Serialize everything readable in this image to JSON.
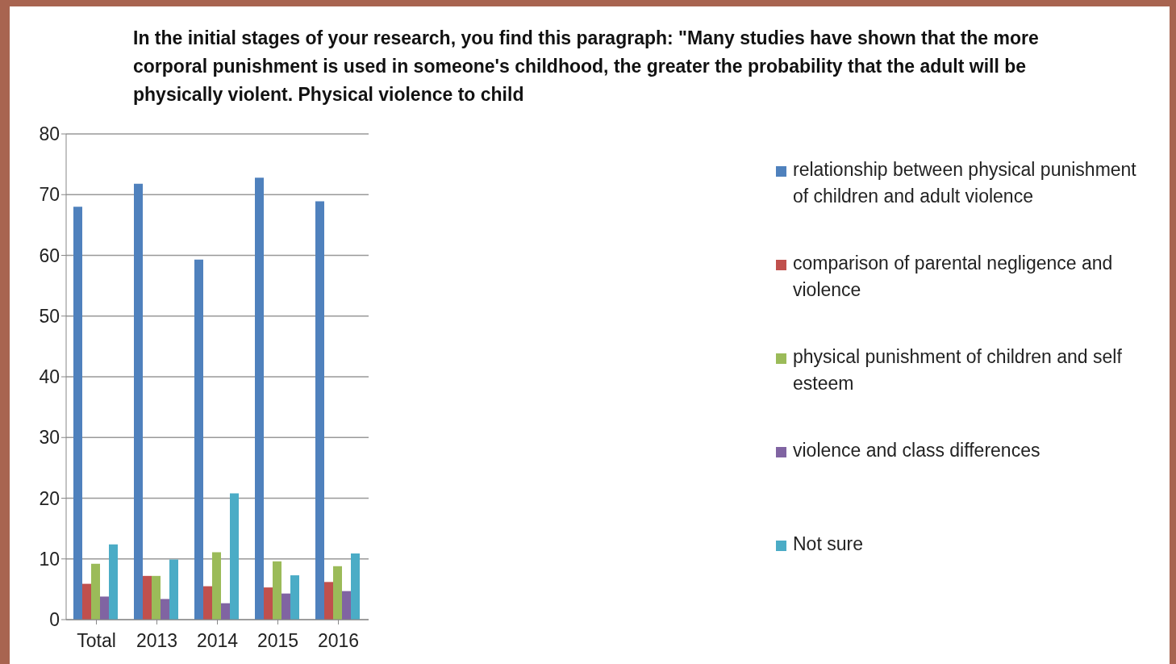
{
  "chart_data": {
    "type": "bar",
    "title": "In the initial stages of your research, you find this paragraph:  \"Many studies have shown that the more corporal punishment is used in someone's childhood, the greater the probability that the adult will  be physically violent.  Physical violence to child",
    "categories": [
      "Total",
      "2013",
      "2014",
      "2015",
      "2016"
    ],
    "series": [
      {
        "name": "relationship between physical punishment of children and adult violence",
        "color": "#4f81bd",
        "values": [
          68,
          71.8,
          59.3,
          72.8,
          68.9
        ]
      },
      {
        "name": "comparison of parental negligence and violence",
        "color": "#c0504d",
        "values": [
          5.9,
          7.2,
          5.5,
          5.3,
          6.2
        ]
      },
      {
        "name": "physical punishment of children and self esteem",
        "color": "#9bbb59",
        "values": [
          9.2,
          7.2,
          11.1,
          9.6,
          8.8
        ]
      },
      {
        "name": "violence and class differences",
        "color": "#8064a2",
        "values": [
          3.8,
          3.4,
          2.7,
          4.3,
          4.7
        ]
      },
      {
        "name": "Not sure",
        "color": "#4bacc6",
        "values": [
          12.4,
          9.9,
          20.8,
          7.3,
          10.9
        ]
      }
    ],
    "ylim": [
      0,
      80
    ],
    "yticks": [
      0,
      10,
      20,
      30,
      40,
      50,
      60,
      70,
      80
    ],
    "grid": "y",
    "legend": "right"
  }
}
